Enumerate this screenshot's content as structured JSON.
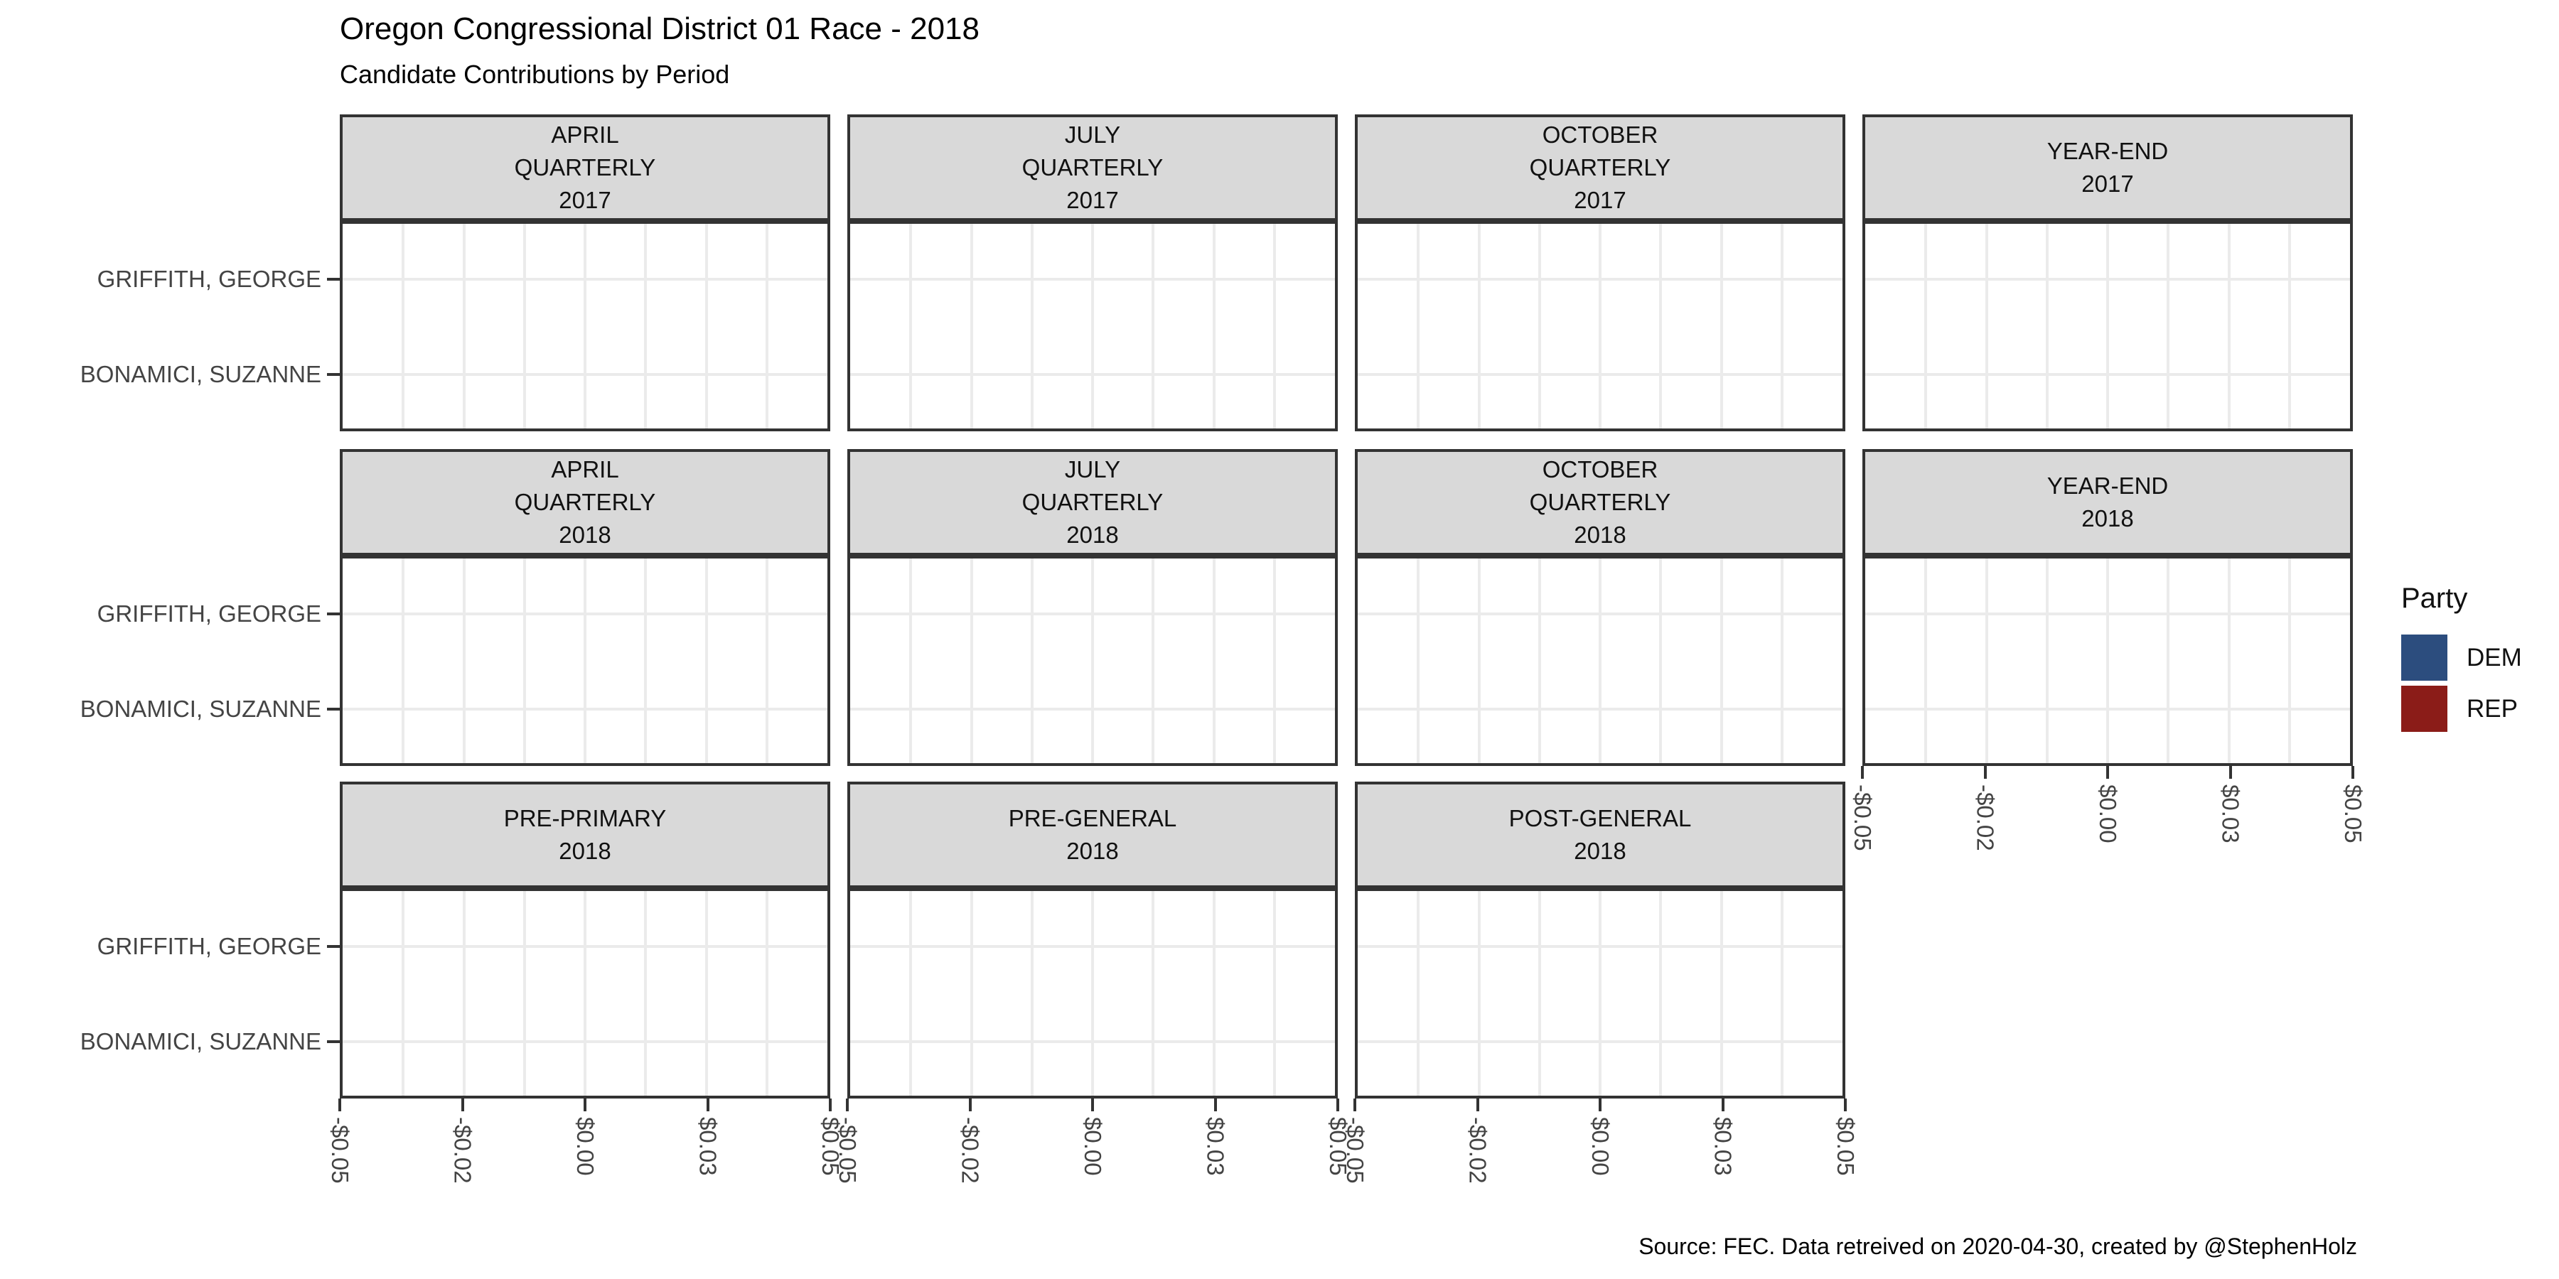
{
  "header": {
    "title": "Oregon Congressional District 01 Race - 2018",
    "subtitle": "Candidate Contributions by Period"
  },
  "caption": "Source: FEC. Data retreived on 2020-04-30, created by @StephenHolz",
  "chart_data": {
    "type": "bar",
    "orientation": "horizontal",
    "title": "Oregon Congressional District 01 Race - 2018",
    "subtitle": "Candidate Contributions by Period",
    "categories": [
      "GRIFFITH, GEORGE",
      "BONAMICI, SUZANNE"
    ],
    "xlim": [
      -0.05,
      0.05
    ],
    "x_tick_values": [
      -0.05,
      -0.025,
      0,
      0.025,
      0.05
    ],
    "x_tick_labels": [
      "-$0.05",
      "-$0.02",
      "$0.00",
      "$0.03",
      "$0.05"
    ],
    "x_tick_label_angle": 90,
    "grid": {
      "vertical": "major+minor",
      "horizontal": "category-major",
      "panel_bg": "#FFFFFF",
      "grid_color": "#EBEBEB",
      "strip_bg": "#D9D9D9",
      "border_color": "#333333"
    },
    "legend": {
      "title": "Party",
      "position": "right",
      "entries": [
        {
          "label": "DEM",
          "color": "#2C4D7E"
        },
        {
          "label": "REP",
          "color": "#8B1C18"
        }
      ]
    },
    "facets": [
      {
        "label_lines": [
          "APRIL",
          "QUARTERLY",
          "2017"
        ],
        "grid_pos": [
          0,
          0
        ],
        "values": [
          0,
          0
        ]
      },
      {
        "label_lines": [
          "JULY",
          "QUARTERLY",
          "2017"
        ],
        "grid_pos": [
          0,
          1
        ],
        "values": [
          0,
          0
        ]
      },
      {
        "label_lines": [
          "OCTOBER",
          "QUARTERLY",
          "2017"
        ],
        "grid_pos": [
          0,
          2
        ],
        "values": [
          0,
          0
        ]
      },
      {
        "label_lines": [
          "YEAR-END",
          "2017"
        ],
        "grid_pos": [
          0,
          3
        ],
        "values": [
          0,
          0
        ]
      },
      {
        "label_lines": [
          "APRIL",
          "QUARTERLY",
          "2018"
        ],
        "grid_pos": [
          1,
          0
        ],
        "values": [
          0,
          0
        ]
      },
      {
        "label_lines": [
          "JULY",
          "QUARTERLY",
          "2018"
        ],
        "grid_pos": [
          1,
          1
        ],
        "values": [
          0,
          0
        ]
      },
      {
        "label_lines": [
          "OCTOBER",
          "QUARTERLY",
          "2018"
        ],
        "grid_pos": [
          1,
          2
        ],
        "values": [
          0,
          0
        ]
      },
      {
        "label_lines": [
          "YEAR-END",
          "2018"
        ],
        "grid_pos": [
          1,
          3
        ],
        "values": [
          0,
          0
        ],
        "x_axis": true
      },
      {
        "label_lines": [
          "PRE-PRIMARY",
          "2018"
        ],
        "grid_pos": [
          2,
          0
        ],
        "values": [
          0,
          0
        ],
        "x_axis": true
      },
      {
        "label_lines": [
          "PRE-GENERAL",
          "2018"
        ],
        "grid_pos": [
          2,
          1
        ],
        "values": [
          0,
          0
        ],
        "x_axis": true
      },
      {
        "label_lines": [
          "POST-GENERAL",
          "2018"
        ],
        "grid_pos": [
          2,
          2
        ],
        "values": [
          0,
          0
        ],
        "x_axis": true
      }
    ]
  }
}
